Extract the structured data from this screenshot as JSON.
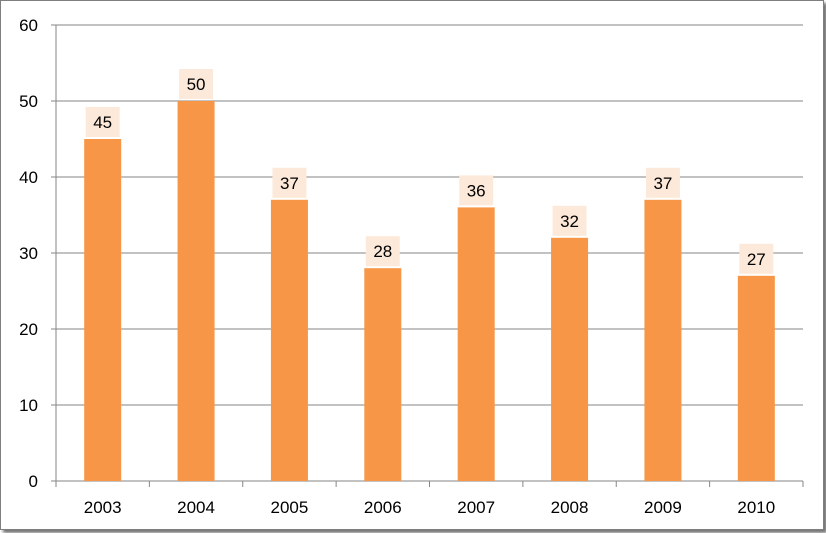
{
  "chart_data": {
    "type": "bar",
    "categories": [
      "2003",
      "2004",
      "2005",
      "2006",
      "2007",
      "2008",
      "2009",
      "2010"
    ],
    "values": [
      45,
      50,
      37,
      28,
      36,
      32,
      37,
      27
    ],
    "data_labels": [
      "45",
      "50",
      "37",
      "28",
      "36",
      "32",
      "37",
      "27"
    ],
    "title": "",
    "xlabel": "",
    "ylabel": "",
    "ylim": [
      0,
      60
    ],
    "yticks": [
      0,
      10,
      20,
      30,
      40,
      50,
      60
    ],
    "ytick_labels": [
      "0",
      "10",
      "20",
      "30",
      "40",
      "50",
      "60"
    ],
    "grid": true,
    "legend": "none",
    "colors": {
      "bar": "#f79646",
      "data_label_background": "#fde9d9",
      "gridline": "#868686",
      "axis": "#868686"
    }
  }
}
